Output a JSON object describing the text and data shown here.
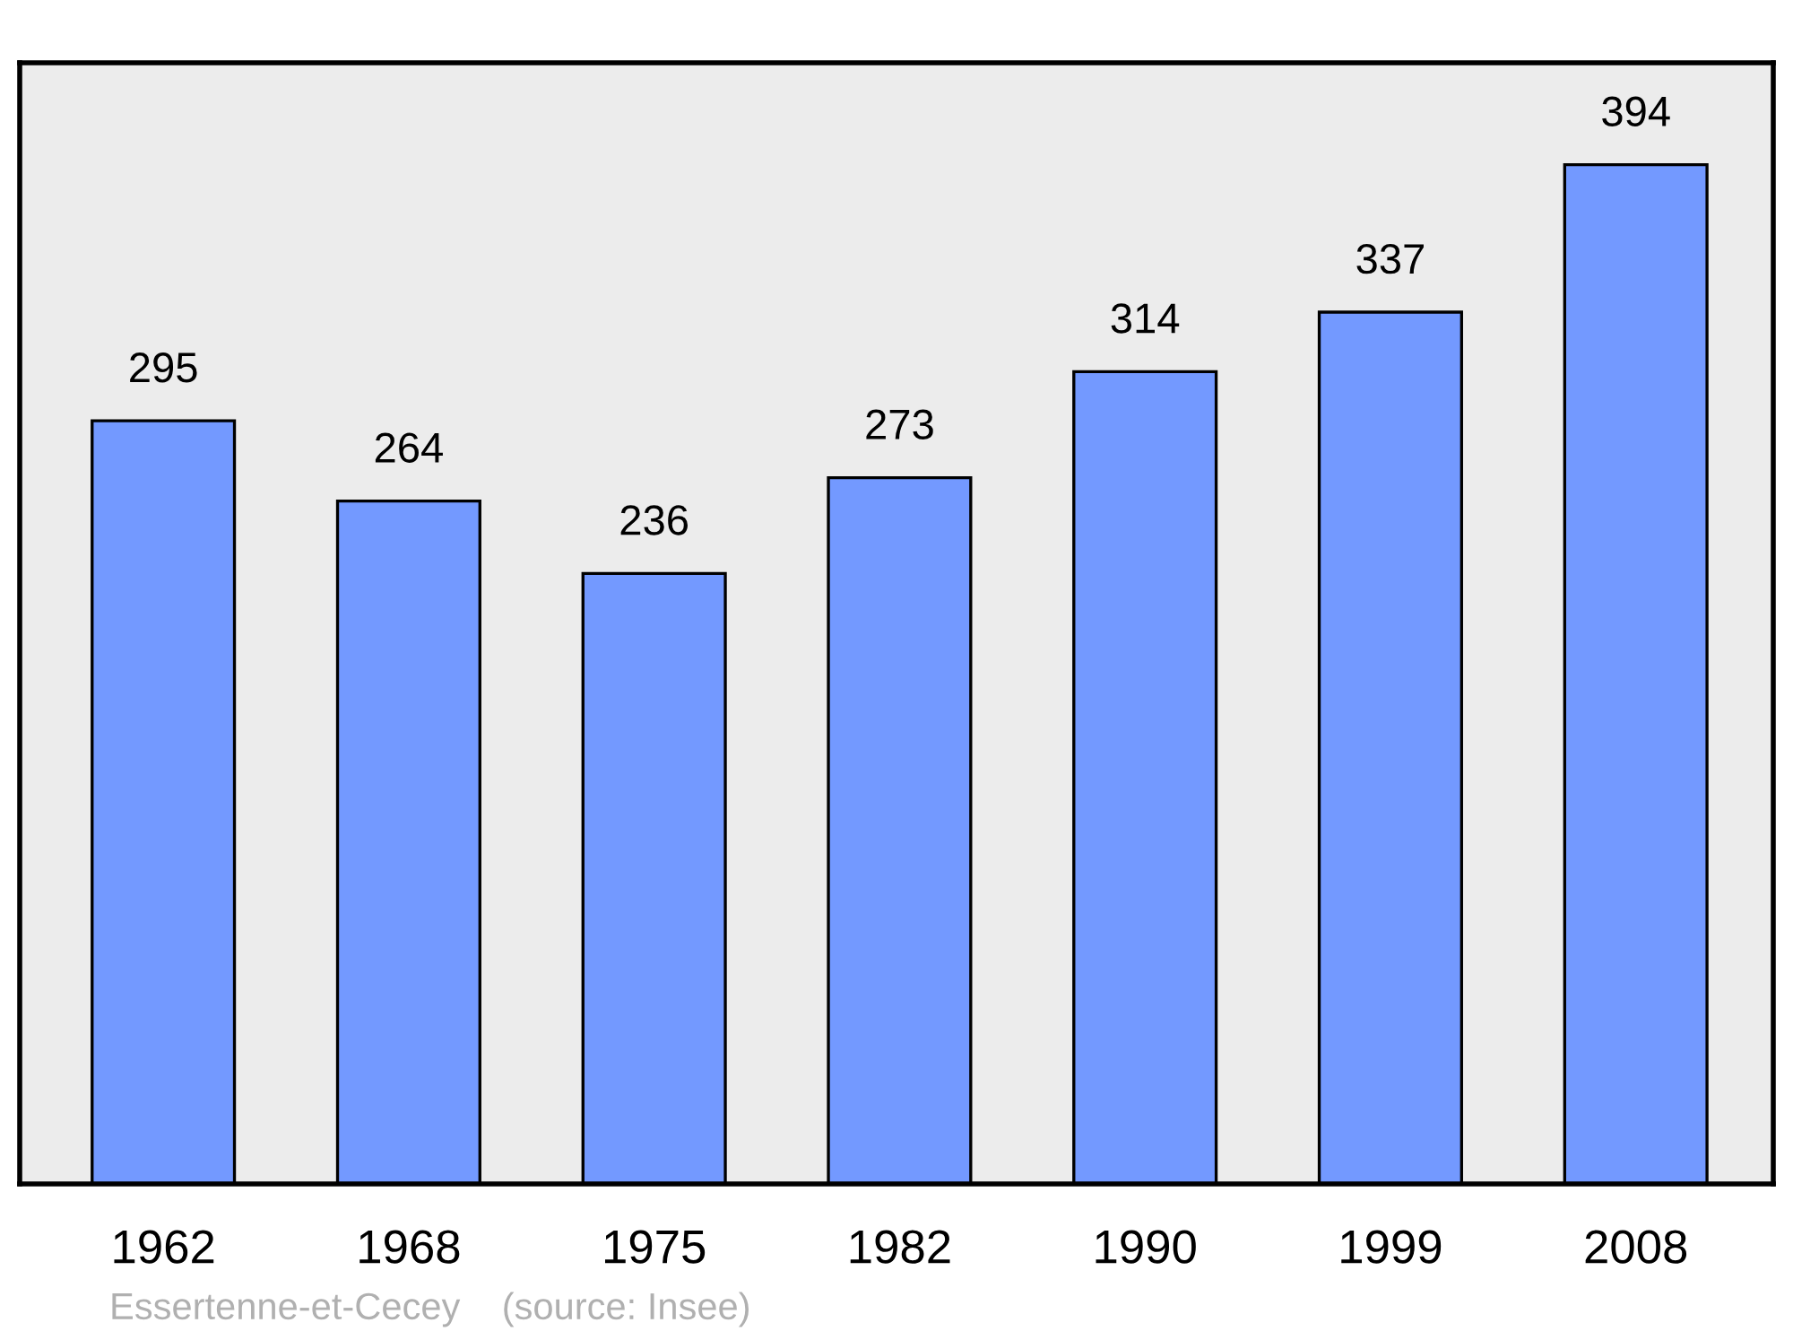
{
  "chart_data": {
    "type": "bar",
    "categories": [
      "1962",
      "1968",
      "1975",
      "1982",
      "1990",
      "1999",
      "2008"
    ],
    "values": [
      295,
      264,
      236,
      273,
      314,
      337,
      394
    ],
    "color": "#7399ff",
    "data_labels": true,
    "grid": false,
    "annotations": [
      "Essertenne-et-Cecey    (source: Insee)"
    ]
  }
}
